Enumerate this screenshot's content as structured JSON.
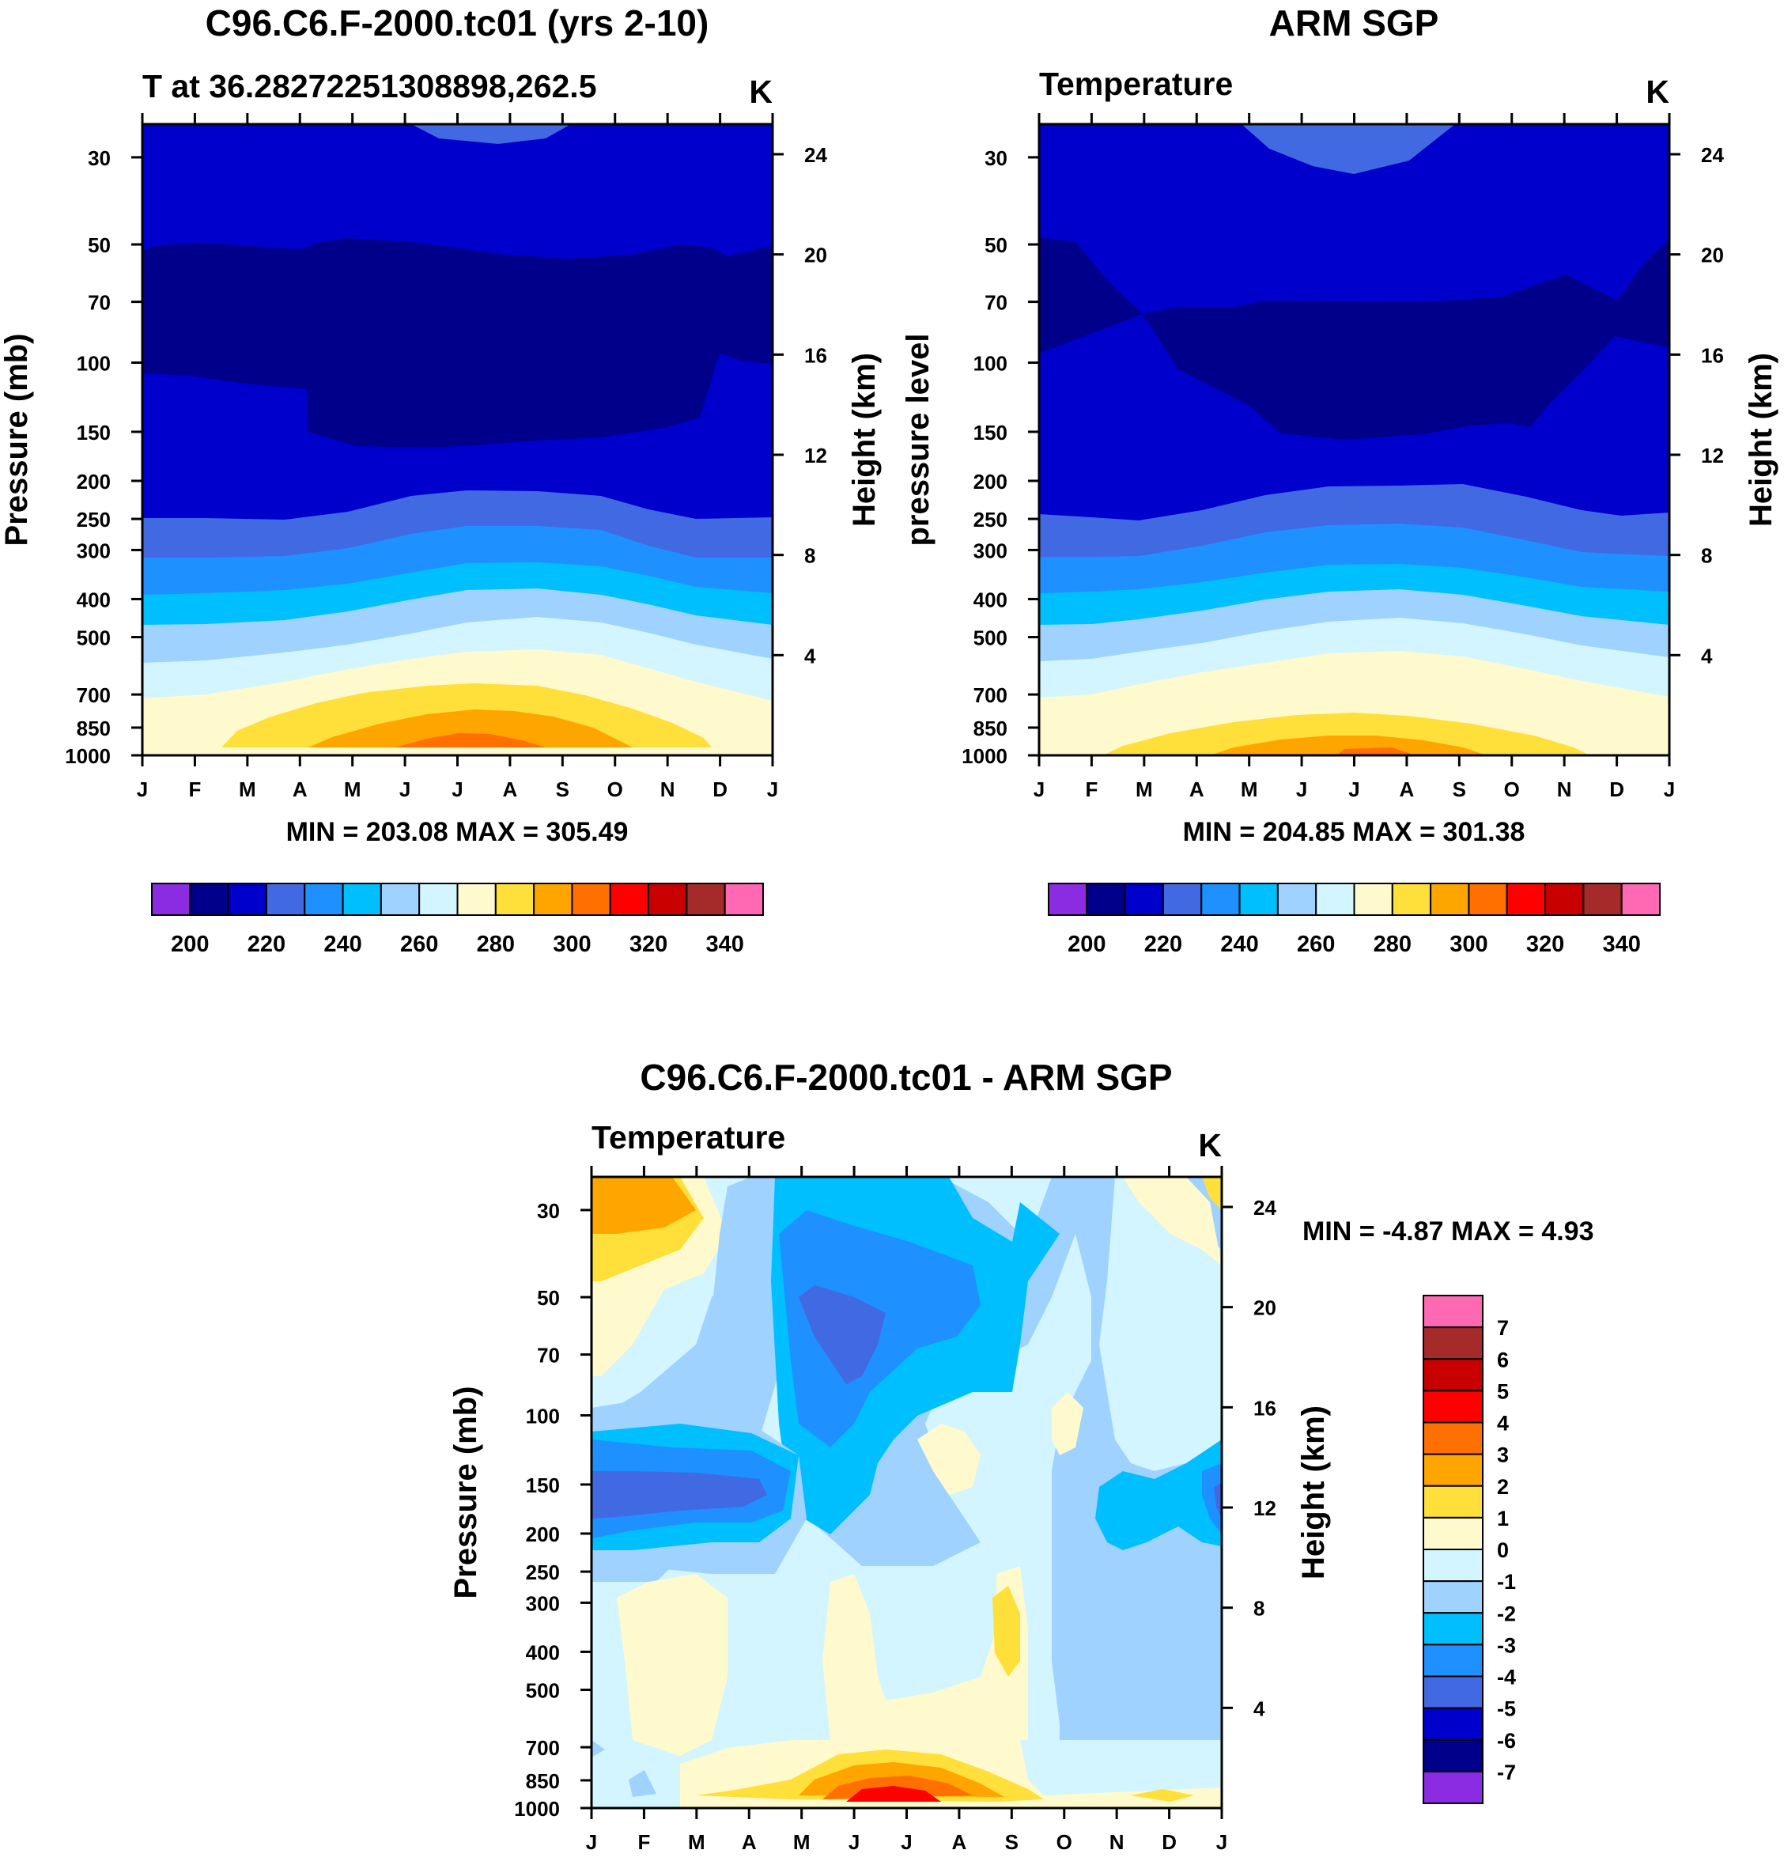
{
  "panels": [
    {
      "main_title": "C96.C6.F-2000.tc01 (yrs 2-10)",
      "left_title": "T at 36.28272251308898,262.5",
      "units": "K",
      "ylabel_left": "Pressure (mb)",
      "ylabel_right": "Height (km)",
      "stats": "MIN = 203.08 MAX = 305.49"
    },
    {
      "main_title": "ARM SGP",
      "left_title": "Temperature",
      "units": "K",
      "ylabel_left": "pressure level",
      "ylabel_right": "Height (km)",
      "stats": "MIN = 204.85 MAX = 301.38"
    },
    {
      "main_title": "C96.C6.F-2000.tc01 - ARM SGP",
      "left_title": "Temperature",
      "units": "K",
      "ylabel_left": "Pressure (mb)",
      "ylabel_right": "Height (km)",
      "stats": "MIN =  -4.87 MAX =    4.93"
    }
  ],
  "months": [
    "J",
    "F",
    "M",
    "A",
    "M",
    "J",
    "J",
    "A",
    "S",
    "O",
    "N",
    "D",
    "J"
  ],
  "pressure_ticks": [
    "30",
    "50",
    "70",
    "100",
    "150",
    "200",
    "250",
    "300",
    "400",
    "500",
    "700",
    "850",
    "1000"
  ],
  "height_ticks": [
    "24",
    "20",
    "16",
    "12",
    "8",
    "4"
  ],
  "colorbar_labels_top": [
    "200",
    "220",
    "240",
    "260",
    "280",
    "300",
    "320",
    "340"
  ],
  "colorbar_labels_diff": [
    "7",
    "6",
    "5",
    "4",
    "3",
    "2",
    "1",
    "0",
    "-1",
    "-2",
    "-3",
    "-4",
    "-5",
    "-6",
    "-7"
  ],
  "colors": {
    "c0": "#8b2be2",
    "c1": "#00008b",
    "c2": "#0000cd",
    "c3": "#4169e1",
    "c4": "#1e90ff",
    "c5": "#00bfff",
    "c6": "#a0d2ff",
    "c7": "#d2f5ff",
    "c8": "#fffacd",
    "c9": "#ffdf3a",
    "c10": "#ffa500",
    "c11": "#ff7000",
    "c12": "#ff0000",
    "c13": "#c80000",
    "c14": "#a52a2a",
    "c15": "#ff69b4"
  },
  "chart_data": [
    {
      "type": "contour",
      "title": "C96.C6.F-2000.tc01 (yrs 2-10)",
      "subtitle": "T at 36.28272251308898,262.5",
      "units": "K",
      "x": [
        "J",
        "F",
        "M",
        "A",
        "M",
        "J",
        "J",
        "A",
        "S",
        "O",
        "N",
        "D",
        "J"
      ],
      "y_pressure_mb": [
        1000,
        850,
        700,
        500,
        400,
        300,
        250,
        200,
        150,
        100,
        70,
        50,
        30
      ],
      "ylim_height_km": [
        0,
        25
      ],
      "levels": [
        200,
        210,
        220,
        230,
        240,
        250,
        260,
        270,
        280,
        290,
        300,
        310,
        320,
        330,
        340
      ],
      "min": 203.08,
      "max": 305.49
    },
    {
      "type": "contour",
      "title": "ARM SGP",
      "subtitle": "Temperature",
      "units": "K",
      "x": [
        "J",
        "F",
        "M",
        "A",
        "M",
        "J",
        "J",
        "A",
        "S",
        "O",
        "N",
        "D",
        "J"
      ],
      "y_pressure_mb": [
        1000,
        850,
        700,
        500,
        400,
        300,
        250,
        200,
        150,
        100,
        70,
        50,
        30
      ],
      "ylim_height_km": [
        0,
        25
      ],
      "levels": [
        200,
        210,
        220,
        230,
        240,
        250,
        260,
        270,
        280,
        290,
        300,
        310,
        320,
        330,
        340
      ],
      "min": 204.85,
      "max": 301.38
    },
    {
      "type": "contour",
      "title": "C96.C6.F-2000.tc01 - ARM SGP",
      "subtitle": "Temperature",
      "units": "K",
      "x": [
        "J",
        "F",
        "M",
        "A",
        "M",
        "J",
        "J",
        "A",
        "S",
        "O",
        "N",
        "D",
        "J"
      ],
      "y_pressure_mb": [
        1000,
        850,
        700,
        500,
        400,
        300,
        250,
        200,
        150,
        100,
        70,
        50,
        30
      ],
      "ylim_height_km": [
        0,
        25
      ],
      "levels": [
        -7,
        -6,
        -5,
        -4,
        -3,
        -2,
        -1,
        0,
        1,
        2,
        3,
        4,
        5,
        6,
        7
      ],
      "min": -4.87,
      "max": 4.93
    }
  ]
}
